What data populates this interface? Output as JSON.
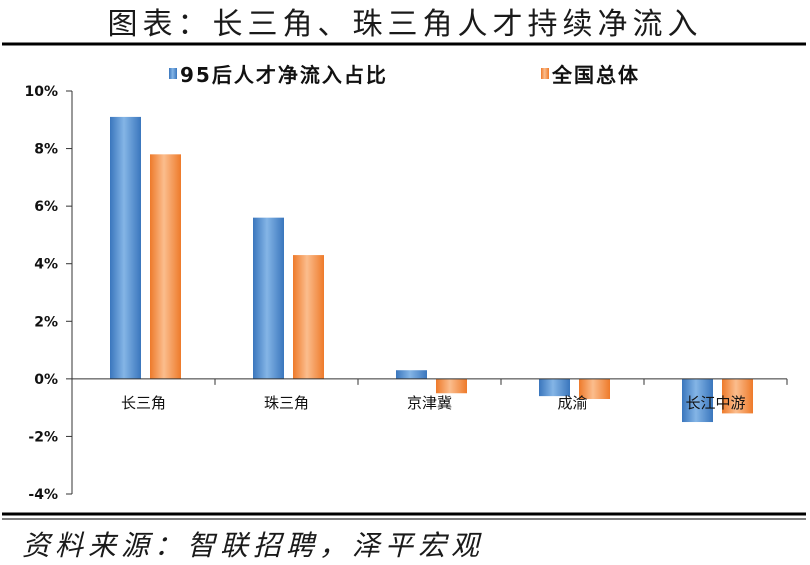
{
  "chart_data": {
    "type": "bar",
    "title": "图表：长三角、珠三角人才持续净流入",
    "xlabel": "",
    "ylabel": "",
    "categories": [
      "长三角",
      "珠三角",
      "京津冀",
      "成渝",
      "长江中游"
    ],
    "series": [
      {
        "name": "95后人才净流入占比",
        "values": [
          9.1,
          5.6,
          0.3,
          -0.6,
          -1.5
        ],
        "color": "#3a76bd",
        "highlight": "#84b5e6"
      },
      {
        "name": "全国总体",
        "values": [
          7.8,
          4.3,
          -0.5,
          -0.7,
          -1.2
        ],
        "color": "#ee7a2a",
        "highlight": "#fbbd8d"
      }
    ],
    "ylim": [
      -4,
      10
    ],
    "yticks": [
      10,
      8,
      6,
      4,
      2,
      0,
      -2,
      -4
    ],
    "ytick_labels": [
      "10%",
      "8%",
      "6%",
      "4%",
      "2%",
      "0%",
      "-2%",
      "-4%"
    ],
    "grid": false,
    "legend": "top"
  },
  "source": "资料来源：智联招聘，泽平宏观"
}
